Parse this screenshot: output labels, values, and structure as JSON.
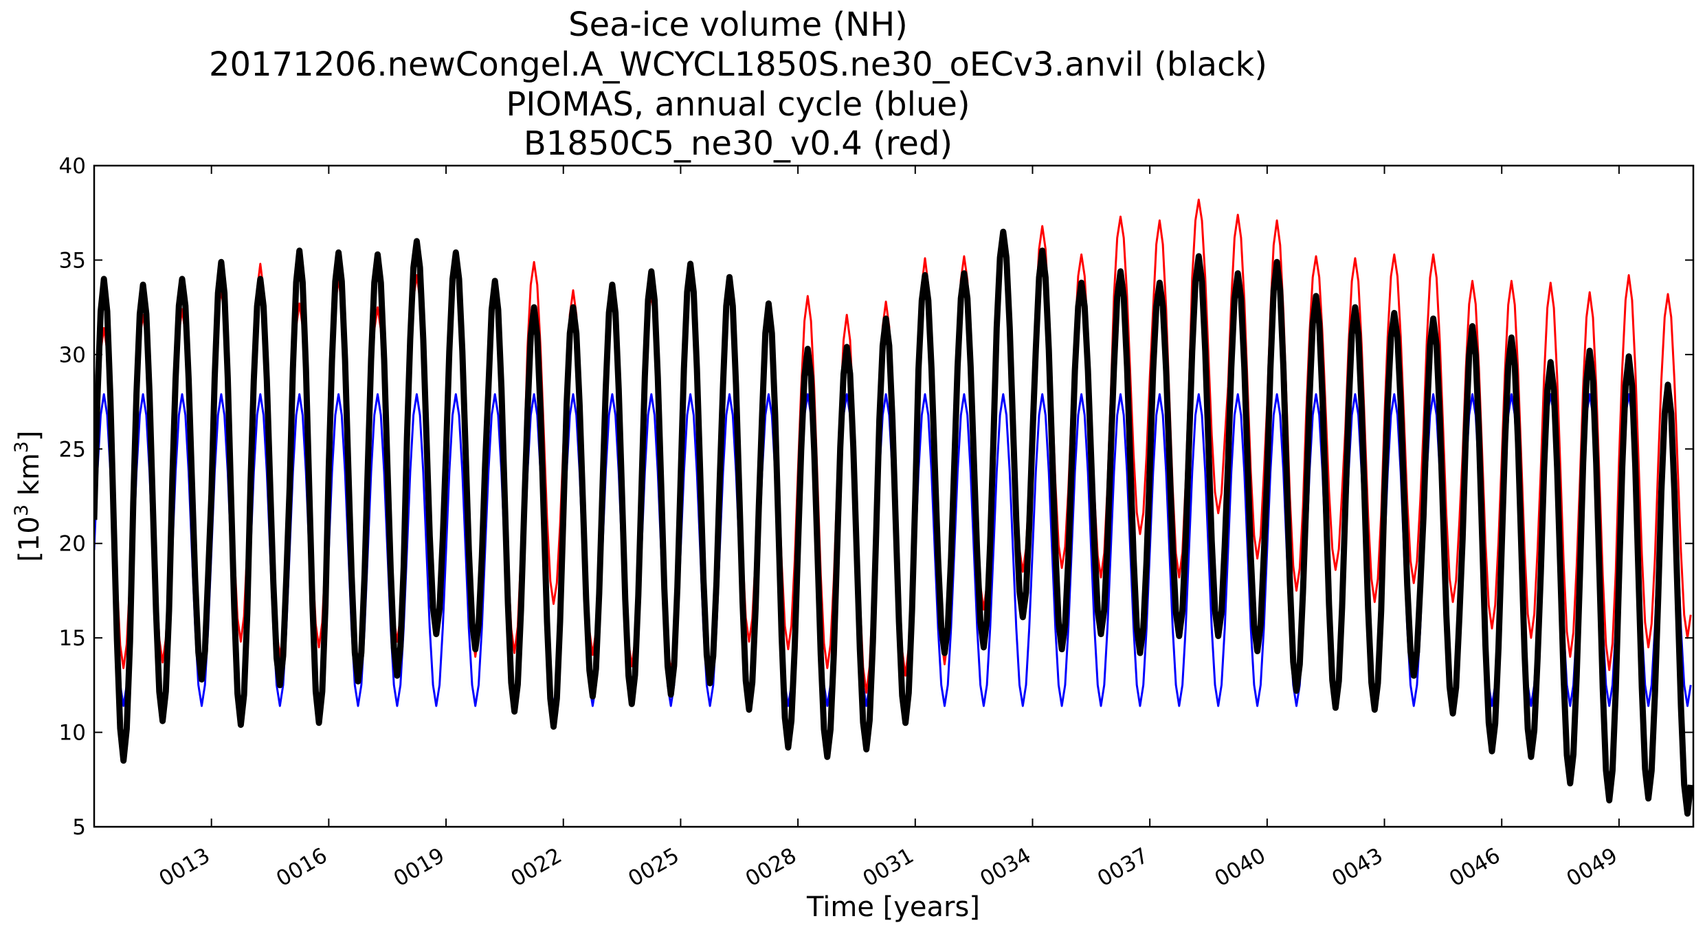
{
  "chart_data": {
    "type": "line",
    "title_lines": [
      "Sea-ice volume (NH)",
      "20171206.newCongel.A_WCYCL1850S.ne30_oECv3.anvil (black)",
      "PIOMAS, annual cycle (blue)",
      "B1850C5_ne30_v0.4 (red)"
    ],
    "xlabel": "Time [years]",
    "ylabel_main": "[10",
    "ylabel_sup1": "3",
    "ylabel_mid": " km",
    "ylabel_sup2": "3",
    "ylabel_end": "]",
    "xlim": [
      10.0,
      50.9
    ],
    "ylim": [
      5,
      40
    ],
    "x_ticks": [
      13,
      16,
      19,
      22,
      25,
      28,
      31,
      34,
      37,
      40,
      43,
      46,
      49
    ],
    "x_tick_labels": [
      "0013",
      "0016",
      "0019",
      "0022",
      "0025",
      "0028",
      "0031",
      "0034",
      "0037",
      "0040",
      "0043",
      "0046",
      "0049"
    ],
    "y_ticks": [
      5,
      10,
      15,
      20,
      25,
      30,
      35,
      40
    ],
    "y_tick_labels": [
      "5",
      "10",
      "15",
      "20",
      "25",
      "30",
      "35",
      "40"
    ],
    "grid": false,
    "series": [
      {
        "color": "#0000ff",
        "stroke_width": 3,
        "annual_cycle": {
          "max": 27.9,
          "min": 11.4
        }
      },
      {
        "color": "#ff0000",
        "stroke_width": 3,
        "years": [
          10,
          11,
          12,
          13,
          14,
          15,
          16,
          17,
          18,
          19,
          20,
          21,
          22,
          23,
          24,
          25,
          26,
          27,
          28,
          29,
          30,
          31,
          32,
          33,
          34,
          35,
          36,
          37,
          38,
          39,
          40,
          41,
          42,
          43,
          44,
          45,
          46,
          47,
          48,
          49,
          50
        ],
        "annual_max": [
          31.4,
          32.1,
          32.4,
          33.4,
          34.8,
          32.7,
          34.0,
          32.5,
          34.2,
          35.2,
          33.4,
          34.9,
          33.4,
          32.8,
          33.2,
          34.1,
          33.5,
          32.8,
          33.1,
          32.1,
          32.8,
          35.1,
          35.2,
          36.2,
          36.8,
          35.3,
          37.3,
          37.1,
          38.2,
          37.4,
          37.1,
          35.2,
          35.1,
          35.3,
          35.3,
          33.9,
          33.9,
          33.8,
          33.3,
          34.2,
          33.2
        ],
        "annual_min": [
          13.4,
          13.7,
          13.0,
          14.8,
          14.0,
          14.5,
          13.7,
          14.8,
          15.4,
          14.0,
          14.2,
          16.8,
          14.1,
          13.5,
          13.2,
          13.5,
          14.8,
          14.4,
          13.4,
          12.1,
          13.0,
          13.6,
          16.5,
          18.5,
          18.7,
          18.2,
          20.5,
          18.2,
          21.6,
          19.2,
          17.5,
          18.6,
          16.9,
          17.9,
          16.9,
          15.5,
          15.0,
          14.0,
          13.3,
          14.5,
          15.0
        ]
      },
      {
        "color": "#000000",
        "stroke_width": 9,
        "years": [
          10,
          11,
          12,
          13,
          14,
          15,
          16,
          17,
          18,
          19,
          20,
          21,
          22,
          23,
          24,
          25,
          26,
          27,
          28,
          29,
          30,
          31,
          32,
          33,
          34,
          35,
          36,
          37,
          38,
          39,
          40,
          41,
          42,
          43,
          44,
          45,
          46,
          47,
          48,
          49,
          50
        ],
        "annual_max": [
          34.0,
          33.7,
          34.0,
          34.9,
          34.0,
          35.5,
          35.4,
          35.3,
          36.0,
          35.4,
          33.9,
          32.5,
          32.5,
          33.7,
          34.4,
          34.8,
          34.1,
          32.7,
          30.3,
          30.4,
          31.9,
          34.2,
          34.3,
          36.5,
          35.5,
          33.8,
          34.4,
          33.8,
          35.2,
          34.3,
          34.9,
          33.1,
          32.5,
          32.2,
          31.9,
          31.5,
          30.9,
          29.6,
          30.2,
          29.9,
          28.4
        ],
        "annual_min": [
          8.5,
          10.6,
          12.8,
          10.4,
          12.5,
          10.5,
          12.7,
          13.0,
          15.2,
          14.4,
          11.1,
          10.3,
          11.9,
          11.5,
          12.0,
          12.6,
          11.2,
          9.2,
          8.7,
          9.1,
          10.5,
          14.2,
          14.5,
          16.1,
          14.4,
          15.2,
          14.2,
          15.1,
          15.1,
          14.3,
          12.2,
          11.3,
          11.2,
          13.0,
          11.0,
          9.0,
          8.7,
          7.3,
          6.4,
          6.5,
          5.7
        ]
      }
    ]
  }
}
